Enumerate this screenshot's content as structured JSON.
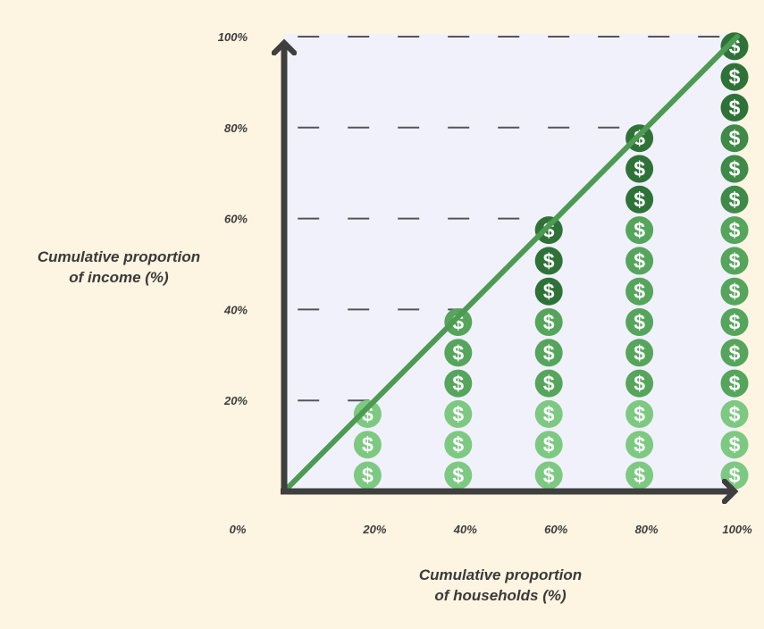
{
  "chart_data": {
    "type": "scatter",
    "ylabel_lines": [
      "Cumulative proportion",
      "of income (%)"
    ],
    "xlabel_lines": [
      "Cumulative proportion",
      "of households (%)"
    ],
    "origin_label": "0%",
    "x_ticks": [
      "20%",
      "40%",
      "60%",
      "80%",
      "100%"
    ],
    "y_ticks": [
      "20%",
      "40%",
      "60%",
      "80%",
      "100%"
    ],
    "xlim": [
      0,
      100
    ],
    "ylim": [
      0,
      100
    ],
    "equality_line": {
      "x": [
        0,
        100
      ],
      "y": [
        0,
        100
      ]
    },
    "coin_symbol": "$",
    "columns": [
      {
        "x": 20,
        "coins": 3
      },
      {
        "x": 40,
        "coins": 6
      },
      {
        "x": 60,
        "coins": 9
      },
      {
        "x": 80,
        "coins": 12
      },
      {
        "x": 100,
        "coins": 15
      }
    ],
    "colors": {
      "background": "#fdf4e1",
      "plot_area": "#f1f1fb",
      "axes": "#3f3f3f",
      "line": "#4d9a52",
      "coin_light": "#7dc982",
      "coin_mid": "#55a55c",
      "coin_dark": "#2f7238"
    }
  }
}
